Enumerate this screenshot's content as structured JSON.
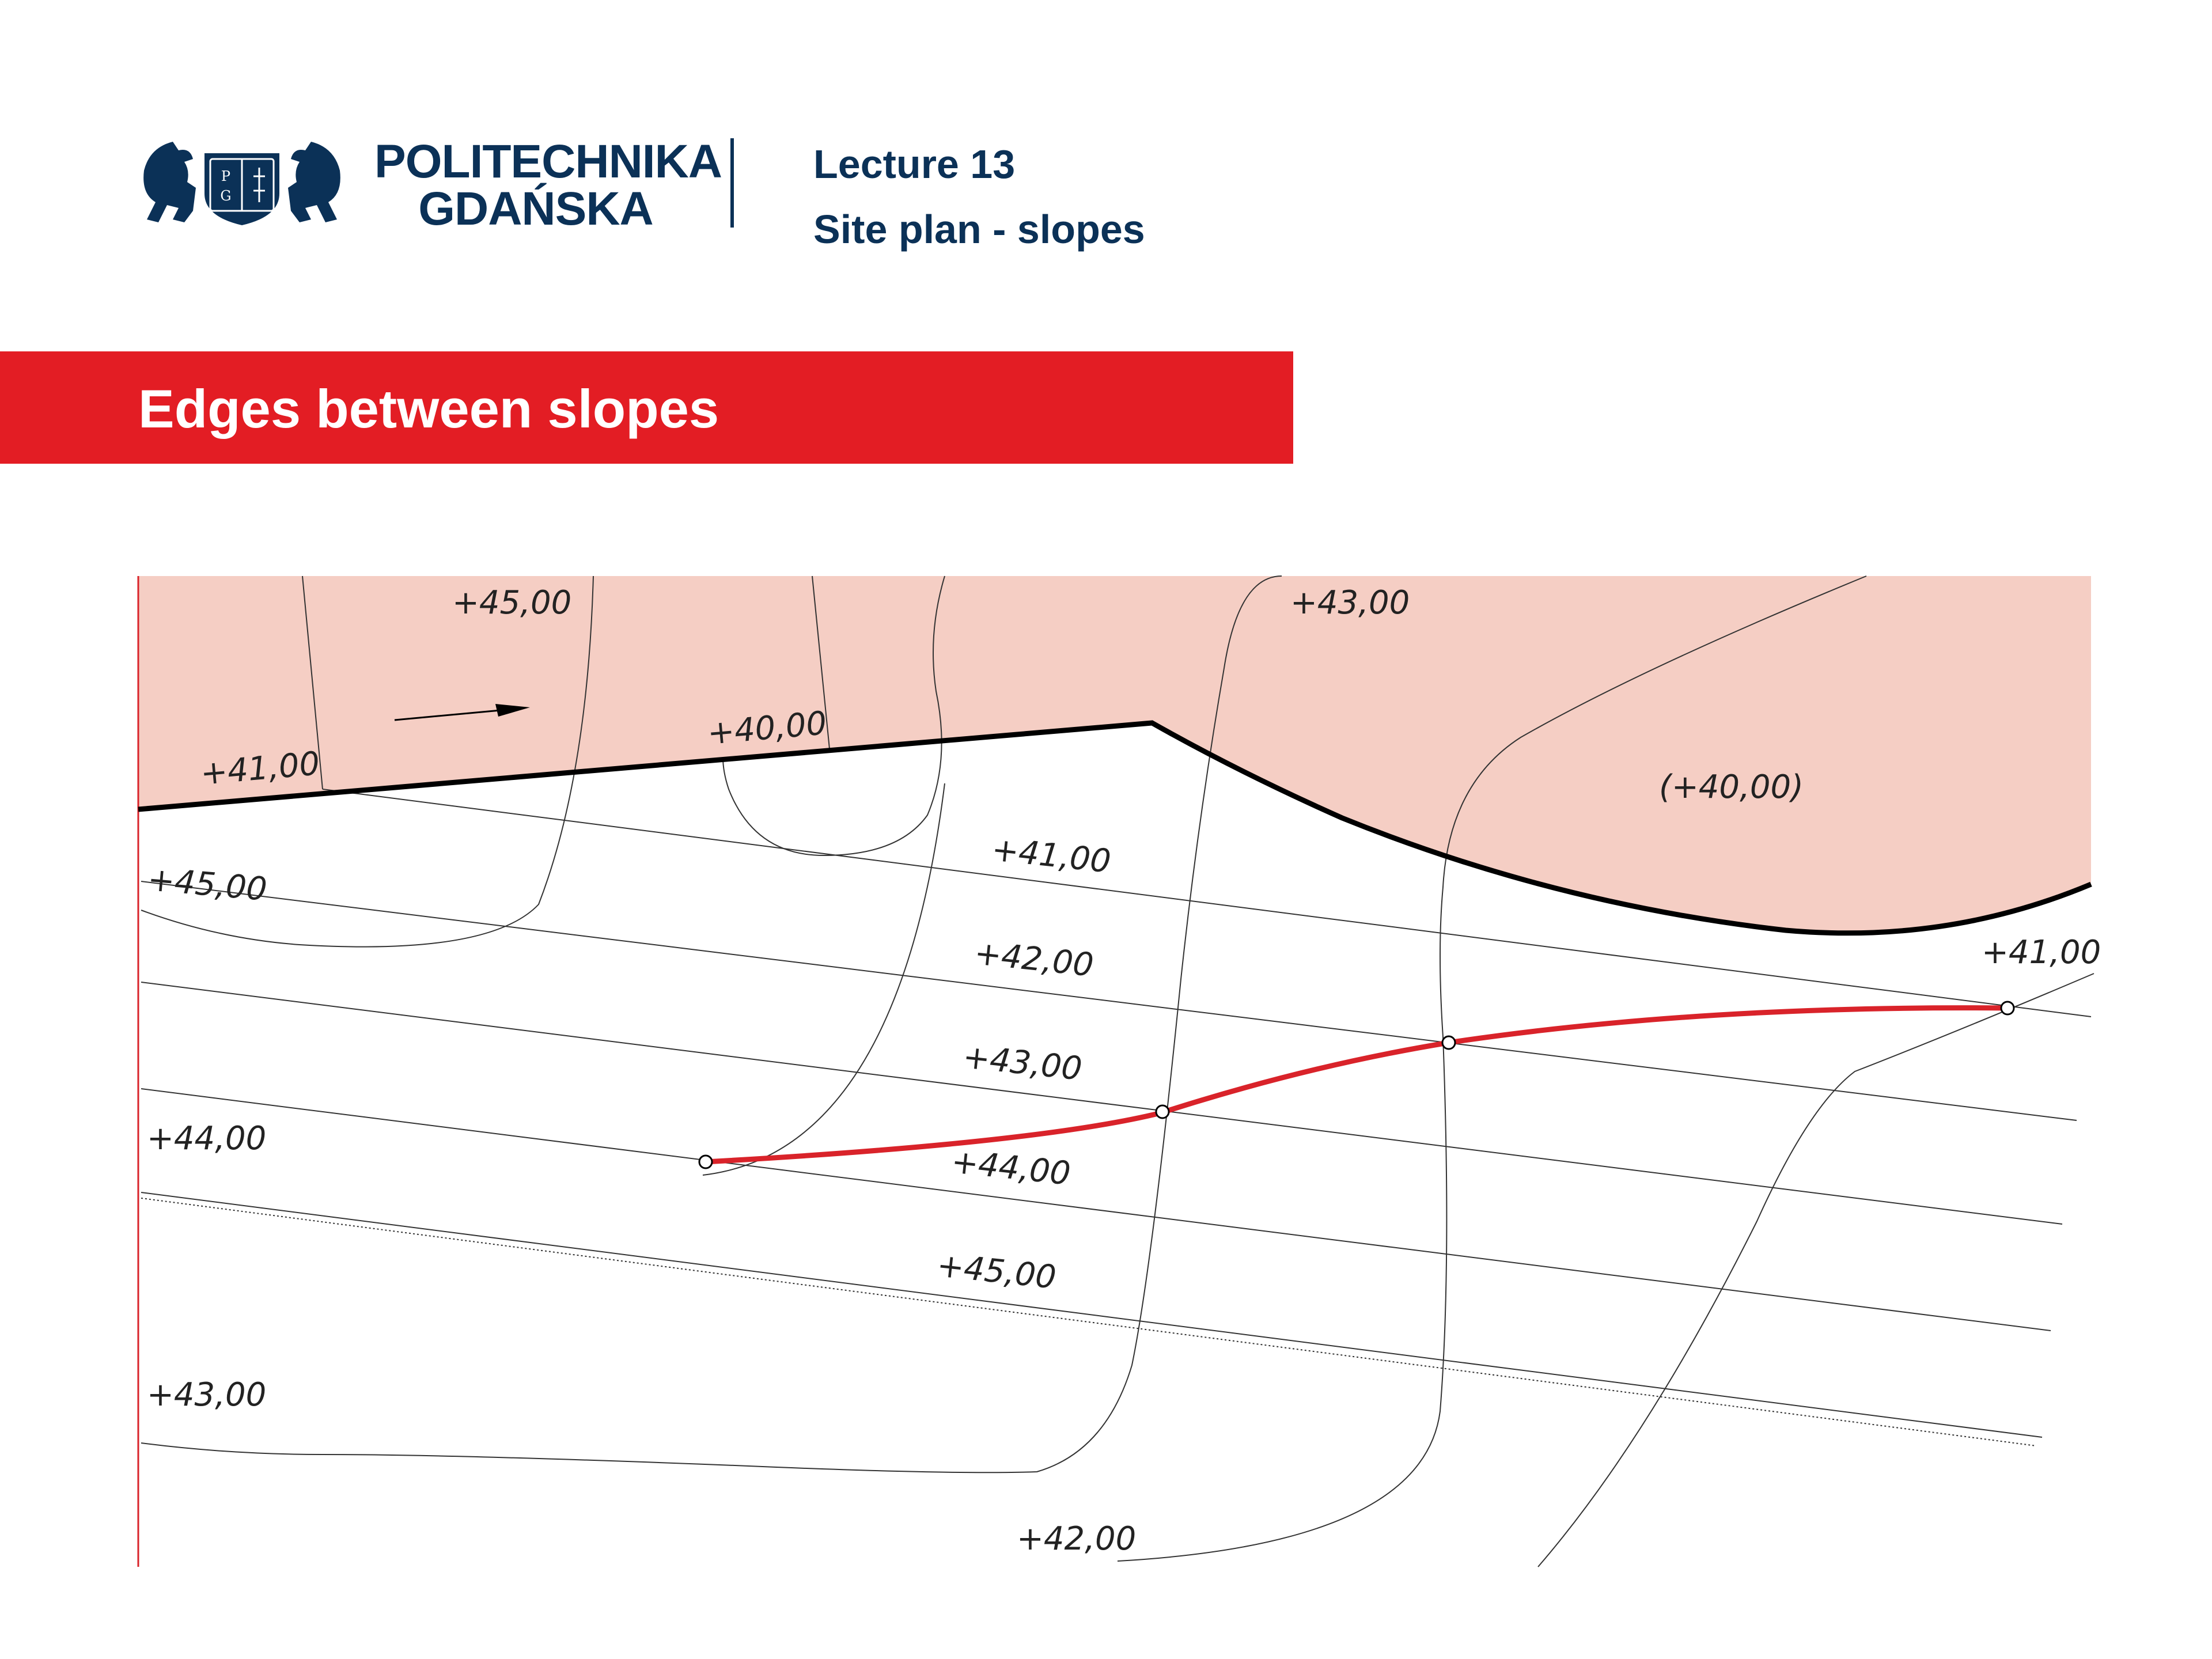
{
  "header": {
    "university_line1": "POLITECHNIKA",
    "university_line2": "GDAŃSKA",
    "lecture": "Lecture 13",
    "subtitle": "Site plan - slopes",
    "logo_letters": [
      "P",
      "G"
    ]
  },
  "banner": {
    "title": "Edges between slopes"
  },
  "drawing": {
    "labels": {
      "top_left": "+45,00",
      "top_right": "+43,00",
      "platform_left": "+41,00",
      "platform_mid": "+40,00",
      "basin": "(+40,00)",
      "left_45": "+45,00",
      "left_44": "+44,00",
      "left_43": "+43,00",
      "row_41": "+41,00",
      "row_42": "+42,00",
      "row_43": "+43,00",
      "row_44": "+44,00",
      "row_45": "+45,00",
      "right_41": "+41,00",
      "bottom_42": "+42,00"
    }
  },
  "colors": {
    "navy": "#0b3157",
    "banner_red": "#e31d24",
    "fill_pink": "#f5cec4",
    "edge_red": "#d9232a"
  }
}
